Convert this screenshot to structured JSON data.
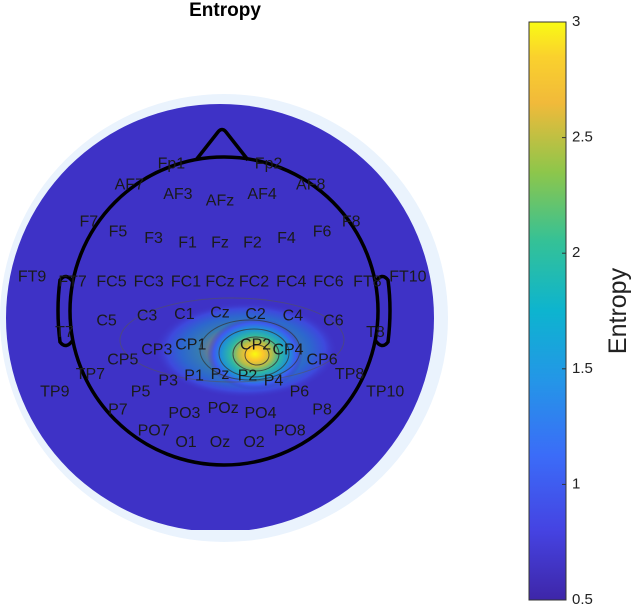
{
  "chart_data": {
    "type": "heatmap",
    "title": "Entropy",
    "colorbar": {
      "label": "Entropy",
      "min": 0.5,
      "max": 3,
      "ticks": [
        0.5,
        1,
        1.5,
        2,
        2.5,
        3
      ],
      "tick_labels": [
        "0.5",
        "1",
        "1.5",
        "2",
        "2.5",
        "3"
      ],
      "colormap": "parula"
    },
    "background_value": 0.5,
    "peak": {
      "electrode": "CP2",
      "value": 3
    },
    "electrodes": [
      {
        "label": "Fp1",
        "x": -0.3,
        "y": 0.95
      },
      {
        "label": "Fp2",
        "x": 0.3,
        "y": 0.95
      },
      {
        "label": "AF7",
        "x": -0.56,
        "y": 0.82
      },
      {
        "label": "AF3",
        "x": -0.26,
        "y": 0.76
      },
      {
        "label": "AFz",
        "x": 0.0,
        "y": 0.72
      },
      {
        "label": "AF4",
        "x": 0.26,
        "y": 0.76
      },
      {
        "label": "AF8",
        "x": 0.56,
        "y": 0.82
      },
      {
        "label": "F7",
        "x": -0.81,
        "y": 0.59
      },
      {
        "label": "F5",
        "x": -0.63,
        "y": 0.53
      },
      {
        "label": "F3",
        "x": -0.41,
        "y": 0.49
      },
      {
        "label": "F1",
        "x": -0.2,
        "y": 0.46
      },
      {
        "label": "Fz",
        "x": 0.0,
        "y": 0.46
      },
      {
        "label": "F2",
        "x": 0.2,
        "y": 0.46
      },
      {
        "label": "F4",
        "x": 0.41,
        "y": 0.49
      },
      {
        "label": "F6",
        "x": 0.63,
        "y": 0.53
      },
      {
        "label": "F8",
        "x": 0.81,
        "y": 0.59
      },
      {
        "label": "FT9",
        "x": -1.16,
        "y": 0.25
      },
      {
        "label": "FT7",
        "x": -0.91,
        "y": 0.22
      },
      {
        "label": "FC5",
        "x": -0.67,
        "y": 0.22
      },
      {
        "label": "FC3",
        "x": -0.44,
        "y": 0.22
      },
      {
        "label": "FC1",
        "x": -0.21,
        "y": 0.22
      },
      {
        "label": "FCz",
        "x": 0.0,
        "y": 0.22
      },
      {
        "label": "FC2",
        "x": 0.21,
        "y": 0.22
      },
      {
        "label": "FC4",
        "x": 0.44,
        "y": 0.22
      },
      {
        "label": "FC6",
        "x": 0.67,
        "y": 0.22
      },
      {
        "label": "FT8",
        "x": 0.91,
        "y": 0.22
      },
      {
        "label": "FT10",
        "x": 1.16,
        "y": 0.25
      },
      {
        "label": "T7",
        "x": -0.96,
        "y": -0.09
      },
      {
        "label": "C5",
        "x": -0.7,
        "y": -0.02
      },
      {
        "label": "C3",
        "x": -0.45,
        "y": 0.01
      },
      {
        "label": "C1",
        "x": -0.22,
        "y": 0.02
      },
      {
        "label": "Cz",
        "x": 0.0,
        "y": 0.03
      },
      {
        "label": "C2",
        "x": 0.22,
        "y": 0.02
      },
      {
        "label": "C4",
        "x": 0.45,
        "y": 0.01
      },
      {
        "label": "C6",
        "x": 0.7,
        "y": -0.02
      },
      {
        "label": "T8",
        "x": 0.96,
        "y": -0.09
      },
      {
        "label": "CP3",
        "x": -0.39,
        "y": -0.2
      },
      {
        "label": "CP1",
        "x": -0.18,
        "y": -0.17
      },
      {
        "label": "CP2",
        "x": 0.22,
        "y": -0.17
      },
      {
        "label": "CP4",
        "x": 0.42,
        "y": -0.2
      },
      {
        "label": "CP5",
        "x": -0.6,
        "y": -0.26
      },
      {
        "label": "CP6",
        "x": 0.63,
        "y": -0.26
      },
      {
        "label": "TP7",
        "x": -0.8,
        "y": -0.35
      },
      {
        "label": "TP8",
        "x": 0.8,
        "y": -0.35
      },
      {
        "label": "TP9",
        "x": -1.02,
        "y": -0.46
      },
      {
        "label": "TP10",
        "x": 1.02,
        "y": -0.46
      },
      {
        "label": "P3",
        "x": -0.32,
        "y": -0.39
      },
      {
        "label": "P1",
        "x": -0.16,
        "y": -0.36
      },
      {
        "label": "Pz",
        "x": 0.0,
        "y": -0.35
      },
      {
        "label": "P2",
        "x": 0.17,
        "y": -0.36
      },
      {
        "label": "P4",
        "x": 0.33,
        "y": -0.39
      },
      {
        "label": "P5",
        "x": -0.49,
        "y": -0.46
      },
      {
        "label": "P6",
        "x": 0.49,
        "y": -0.46
      },
      {
        "label": "P7",
        "x": -0.63,
        "y": -0.57
      },
      {
        "label": "P8",
        "x": 0.63,
        "y": -0.57
      },
      {
        "label": "PO3",
        "x": -0.22,
        "y": -0.59
      },
      {
        "label": "POz",
        "x": 0.02,
        "y": -0.56
      },
      {
        "label": "PO4",
        "x": 0.25,
        "y": -0.59
      },
      {
        "label": "PO7",
        "x": -0.41,
        "y": -0.7
      },
      {
        "label": "PO8",
        "x": 0.43,
        "y": -0.7
      },
      {
        "label": "O1",
        "x": -0.21,
        "y": -0.77
      },
      {
        "label": "Oz",
        "x": 0.0,
        "y": -0.77
      },
      {
        "label": "O2",
        "x": 0.21,
        "y": -0.77
      }
    ]
  }
}
